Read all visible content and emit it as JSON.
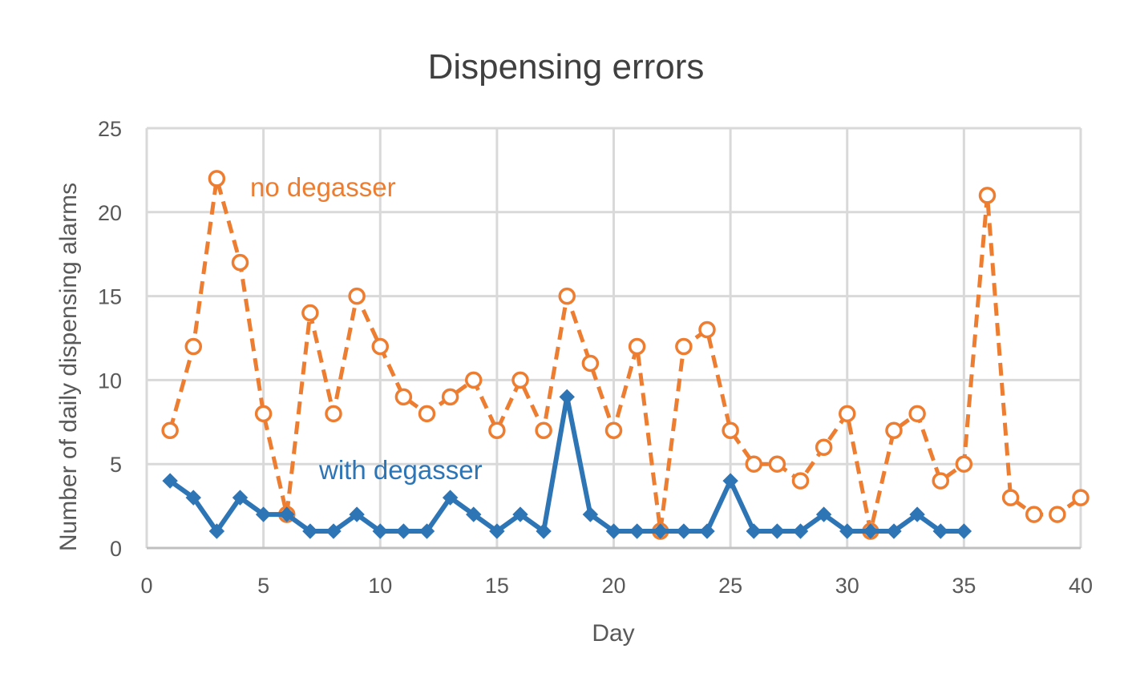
{
  "chart_data": {
    "type": "line",
    "title": "Dispensing errors",
    "xlabel": "Day",
    "ylabel": "Number of daily dispensing alarms",
    "xlim": [
      0,
      40
    ],
    "ylim": [
      0,
      25
    ],
    "xticks": [
      0,
      5,
      10,
      15,
      20,
      25,
      30,
      35,
      40
    ],
    "yticks": [
      0,
      5,
      10,
      15,
      20,
      25
    ],
    "grid": true,
    "series": [
      {
        "name": "no degasser",
        "color": "#ed7d31",
        "line_style": "dashed",
        "marker": "open-circle",
        "x": [
          1,
          2,
          3,
          4,
          5,
          6,
          7,
          8,
          9,
          10,
          11,
          12,
          13,
          14,
          15,
          16,
          17,
          18,
          19,
          20,
          21,
          22,
          23,
          24,
          25,
          26,
          27,
          28,
          29,
          30,
          31,
          32,
          33,
          34,
          35,
          36,
          37,
          38,
          39,
          40
        ],
        "y": [
          7,
          12,
          22,
          17,
          8,
          2,
          14,
          8,
          15,
          12,
          9,
          8,
          9,
          10,
          7,
          10,
          7,
          15,
          11,
          7,
          12,
          1,
          12,
          13,
          7,
          5,
          5,
          4,
          6,
          8,
          1,
          7,
          8,
          4,
          5,
          21,
          3,
          2,
          2,
          3
        ]
      },
      {
        "name": "with degasser",
        "color": "#2e75b6",
        "line_style": "solid",
        "marker": "diamond",
        "x": [
          1,
          2,
          3,
          4,
          5,
          6,
          7,
          8,
          9,
          10,
          11,
          12,
          13,
          14,
          15,
          16,
          17,
          18,
          19,
          20,
          21,
          22,
          23,
          24,
          25,
          26,
          27,
          28,
          29,
          30,
          31,
          32,
          33,
          34,
          35
        ],
        "y": [
          4,
          3,
          1,
          3,
          2,
          2,
          1,
          1,
          2,
          1,
          1,
          1,
          3,
          2,
          1,
          2,
          1,
          9,
          2,
          1,
          1,
          1,
          1,
          1,
          4,
          1,
          1,
          1,
          2,
          1,
          1,
          1,
          2,
          1,
          1
        ]
      }
    ]
  }
}
